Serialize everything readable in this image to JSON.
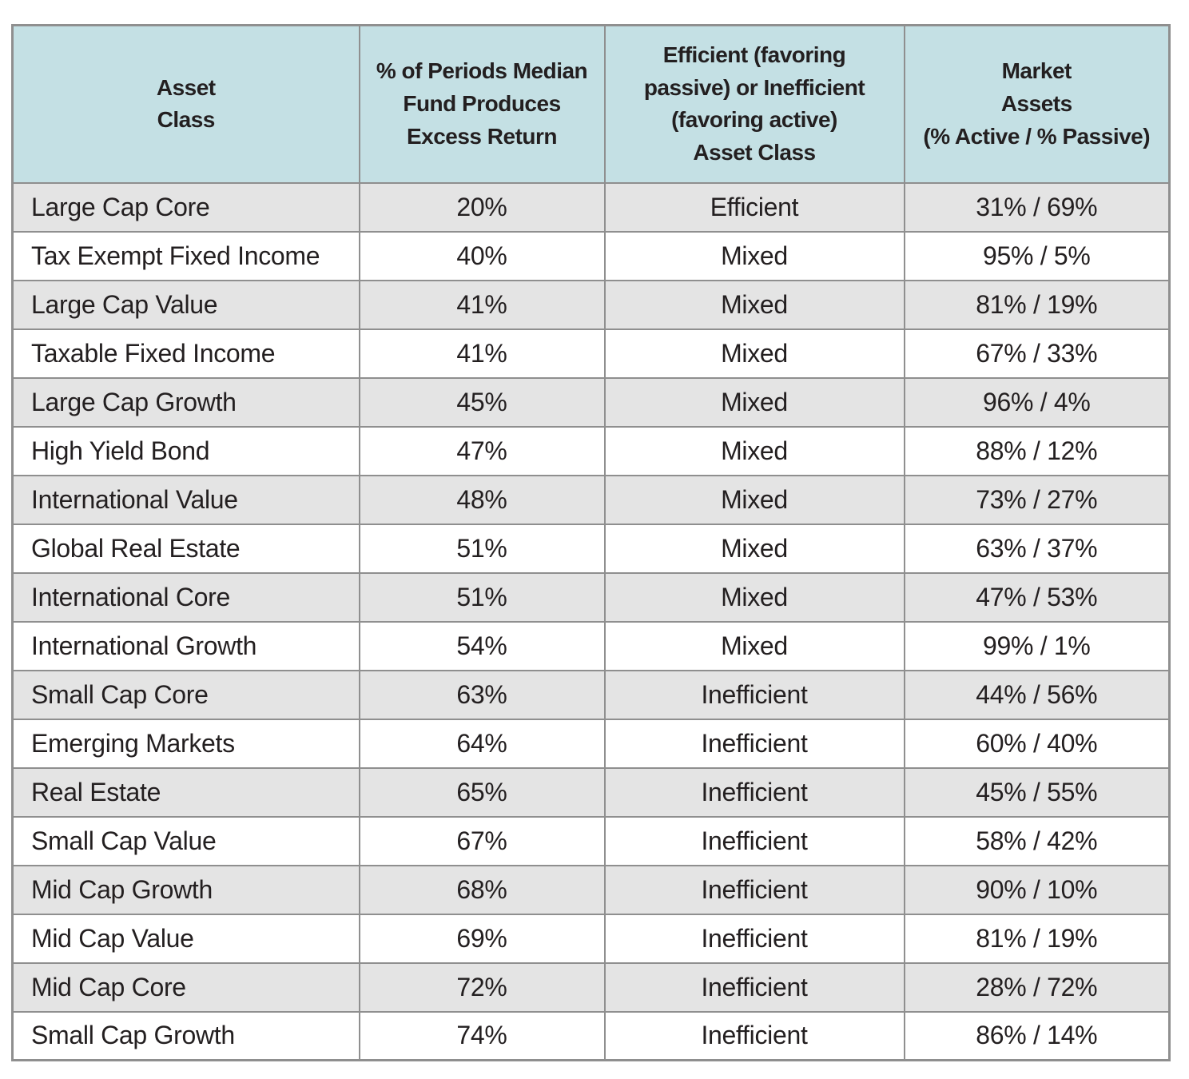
{
  "table": {
    "columns": [
      "Asset\nClass",
      "% of Periods Median\nFund Produces\nExcess Return",
      "Efficient (favoring\npassive) or Inefficient\n(favoring active)\nAsset Class",
      "Market\nAssets\n(% Active / % Passive)"
    ],
    "rows": [
      [
        "Large Cap Core",
        "20%",
        "Efficient",
        "31% / 69%"
      ],
      [
        "Tax Exempt Fixed Income",
        "40%",
        "Mixed",
        "95% / 5%"
      ],
      [
        "Large Cap Value",
        "41%",
        "Mixed",
        "81% / 19%"
      ],
      [
        "Taxable Fixed Income",
        "41%",
        "Mixed",
        "67% / 33%"
      ],
      [
        "Large Cap Growth",
        "45%",
        "Mixed",
        "96% / 4%"
      ],
      [
        "High Yield Bond",
        "47%",
        "Mixed",
        "88% / 12%"
      ],
      [
        "International Value",
        "48%",
        "Mixed",
        "73% / 27%"
      ],
      [
        "Global Real Estate",
        "51%",
        "Mixed",
        "63% / 37%"
      ],
      [
        "International Core",
        "51%",
        "Mixed",
        "47% / 53%"
      ],
      [
        "International Growth",
        "54%",
        "Mixed",
        "99% / 1%"
      ],
      [
        "Small Cap Core",
        "63%",
        "Inefficient",
        "44% / 56%"
      ],
      [
        "Emerging Markets",
        "64%",
        "Inefficient",
        "60% / 40%"
      ],
      [
        "Real Estate",
        "65%",
        "Inefficient",
        "45% / 55%"
      ],
      [
        "Small Cap Value",
        "67%",
        "Inefficient",
        "58% / 42%"
      ],
      [
        "Mid Cap Growth",
        "68%",
        "Inefficient",
        "90% / 10%"
      ],
      [
        "Mid Cap Value",
        "69%",
        "Inefficient",
        "81% / 19%"
      ],
      [
        "Mid Cap Core",
        "72%",
        "Inefficient",
        "28% / 72%"
      ],
      [
        "Small Cap Growth",
        "74%",
        "Inefficient",
        "86% / 14%"
      ]
    ]
  },
  "colors": {
    "header_bg": "#c4e0e4",
    "row_alt_bg": "#e4e4e4",
    "row_bg": "#ffffff",
    "border": "#8f8f8f",
    "text": "#231f20"
  },
  "chart_data": {
    "type": "table",
    "columns": [
      "Asset Class",
      "% of Periods Median Fund Produces Excess Return",
      "Efficient (favoring passive) or Inefficient (favoring active) Asset Class",
      "Market Assets (% Active / % Passive)"
    ],
    "rows": [
      [
        "Large Cap Core",
        "20%",
        "Efficient",
        "31% / 69%"
      ],
      [
        "Tax Exempt Fixed Income",
        "40%",
        "Mixed",
        "95% / 5%"
      ],
      [
        "Large Cap Value",
        "41%",
        "Mixed",
        "81% / 19%"
      ],
      [
        "Taxable Fixed Income",
        "41%",
        "Mixed",
        "67% / 33%"
      ],
      [
        "Large Cap Growth",
        "45%",
        "Mixed",
        "96% / 4%"
      ],
      [
        "High Yield Bond",
        "47%",
        "Mixed",
        "88% / 12%"
      ],
      [
        "International Value",
        "48%",
        "Mixed",
        "73% / 27%"
      ],
      [
        "Global Real Estate",
        "51%",
        "Mixed",
        "63% / 37%"
      ],
      [
        "International Core",
        "51%",
        "Mixed",
        "47% / 53%"
      ],
      [
        "International Growth",
        "54%",
        "Mixed",
        "99% / 1%"
      ],
      [
        "Small Cap Core",
        "63%",
        "Inefficient",
        "44% / 56%"
      ],
      [
        "Emerging Markets",
        "64%",
        "Inefficient",
        "60% / 40%"
      ],
      [
        "Real Estate",
        "65%",
        "Inefficient",
        "45% / 55%"
      ],
      [
        "Small Cap Value",
        "67%",
        "Inefficient",
        "58% / 42%"
      ],
      [
        "Mid Cap Growth",
        "68%",
        "Inefficient",
        "90% / 10%"
      ],
      [
        "Mid Cap Value",
        "69%",
        "Inefficient",
        "81% / 19%"
      ],
      [
        "Mid Cap Core",
        "72%",
        "Inefficient",
        "28% / 72%"
      ],
      [
        "Small Cap Growth",
        "74%",
        "Inefficient",
        "86% / 14%"
      ]
    ]
  }
}
